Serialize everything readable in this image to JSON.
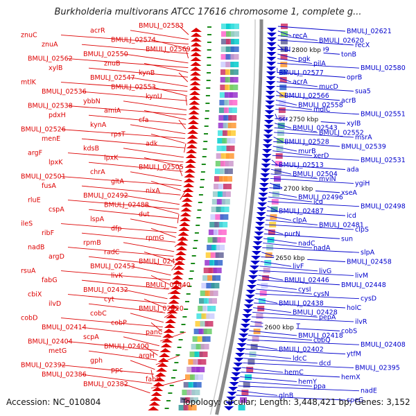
{
  "title": "Burkholderia multivorans ATCC 17616 chromosome 1, complete g...",
  "footer": {
    "accession": "Accession: NC_010804",
    "stats": "Topology: circular; Length: 3,448,421 bp; Genes: 3,152"
  },
  "colors": {
    "left_genes": "#dd0000",
    "right_genes": "#0000cc",
    "backbone": "#888888",
    "backbone_inner": "#cccccc",
    "tick_marks": "#1a8a1a"
  },
  "ruler": [
    "2800 kbp",
    "2750 kbp",
    "2700 kbp",
    "2650 kbp",
    "2600 kbp"
  ],
  "left_labels": [
    "BMULJ_02583",
    "acrR",
    "znuC",
    "BMULJ_02574",
    "znuA",
    "BMULJ_02569",
    "BMULJ_02550",
    "BMULJ_02562",
    "znuB",
    "xylB",
    "kynB",
    "BMULJ_02547",
    "mtlK",
    "BMULJ_02553",
    "BMULJ_02536",
    "kynU",
    "ybbN",
    "BMULJ_02538",
    "amiA",
    "pdxH",
    "cfa",
    "kynA",
    "BMULJ_02526",
    "rpsT",
    "menE",
    "adk",
    "kdsB",
    "argF",
    "lpxK",
    "lpxK",
    "BMULJ_02505",
    "chrA",
    "BMULJ_02501",
    "gltA",
    "fusA",
    "nixA",
    "BMULJ_02492",
    "rluE",
    "BMULJ_02488",
    "cspA",
    "dut",
    "lspA",
    "ileS",
    "dfp",
    "ribF",
    "rpmG",
    "rpmB",
    "nadB",
    "radC",
    "argD",
    "BMULJ_02457",
    "BMULJ_02453",
    "rsuA",
    "livK",
    "fabG",
    "BMULJ_02440",
    "BMULJ_02432",
    "cbiX",
    "cyt",
    "ilvD",
    "BMULJ_02420",
    "cobC",
    "cobD",
    "cobP",
    "BMULJ_02414",
    "panC",
    "scpA",
    "BMULJ_02404",
    "BMULJ_02400",
    "metG",
    "argH",
    "gph",
    "BMULJ_02392",
    "ppc",
    "BMULJ_02386",
    "fabG",
    "BMULJ_02382"
  ],
  "right_labels": [
    "BMULJ_02621",
    "recA",
    "BMULJ_02620",
    "recX",
    "BMULJ_02599",
    "tonB",
    "pgk",
    "pilA",
    "BMULJ_02580",
    "BMULJ_02577",
    "oprB",
    "acrA",
    "mucD",
    "sua5",
    "BMULJ_02566",
    "acrB",
    "BMULJ_02558",
    "mdlC",
    "BMULJ_02551",
    "scrK",
    "xylB",
    "BMULJ_02543",
    "BMULJ_02552",
    "msrA",
    "BMULJ_02528",
    "BMULJ_02539",
    "murB",
    "xerD",
    "BMULJ_02531",
    "BMULJ_02513",
    "ada",
    "BMULJ_02504",
    "mviN",
    "ygiH",
    "sod",
    "xseA",
    "BMULJ_02496",
    "icd",
    "BMULJ_02498",
    "BMULJ_02487",
    "icd",
    "clpA",
    "BMULJ_02481",
    "clpS",
    "purN",
    "sun",
    "nadC",
    "nadA",
    "slpA",
    "desC",
    "BMULJ_02458",
    "livF",
    "livG",
    "livM",
    "BMULJ_02446",
    "BMULJ_02448",
    "cysI",
    "cysN",
    "cysD",
    "BMULJ_02438",
    "holC",
    "BMULJ_02428",
    "pepA",
    "ilvR",
    "cobT",
    "cobS",
    "BMULJ_02418",
    "cobQ",
    "BMULJ_02408",
    "BMULJ_02402",
    "ytfM",
    "ldcC",
    "dcd",
    "BMULJ_02395",
    "hemC",
    "hemX",
    "hemY",
    "ppa",
    "nadE",
    "glnB",
    "speG"
  ]
}
